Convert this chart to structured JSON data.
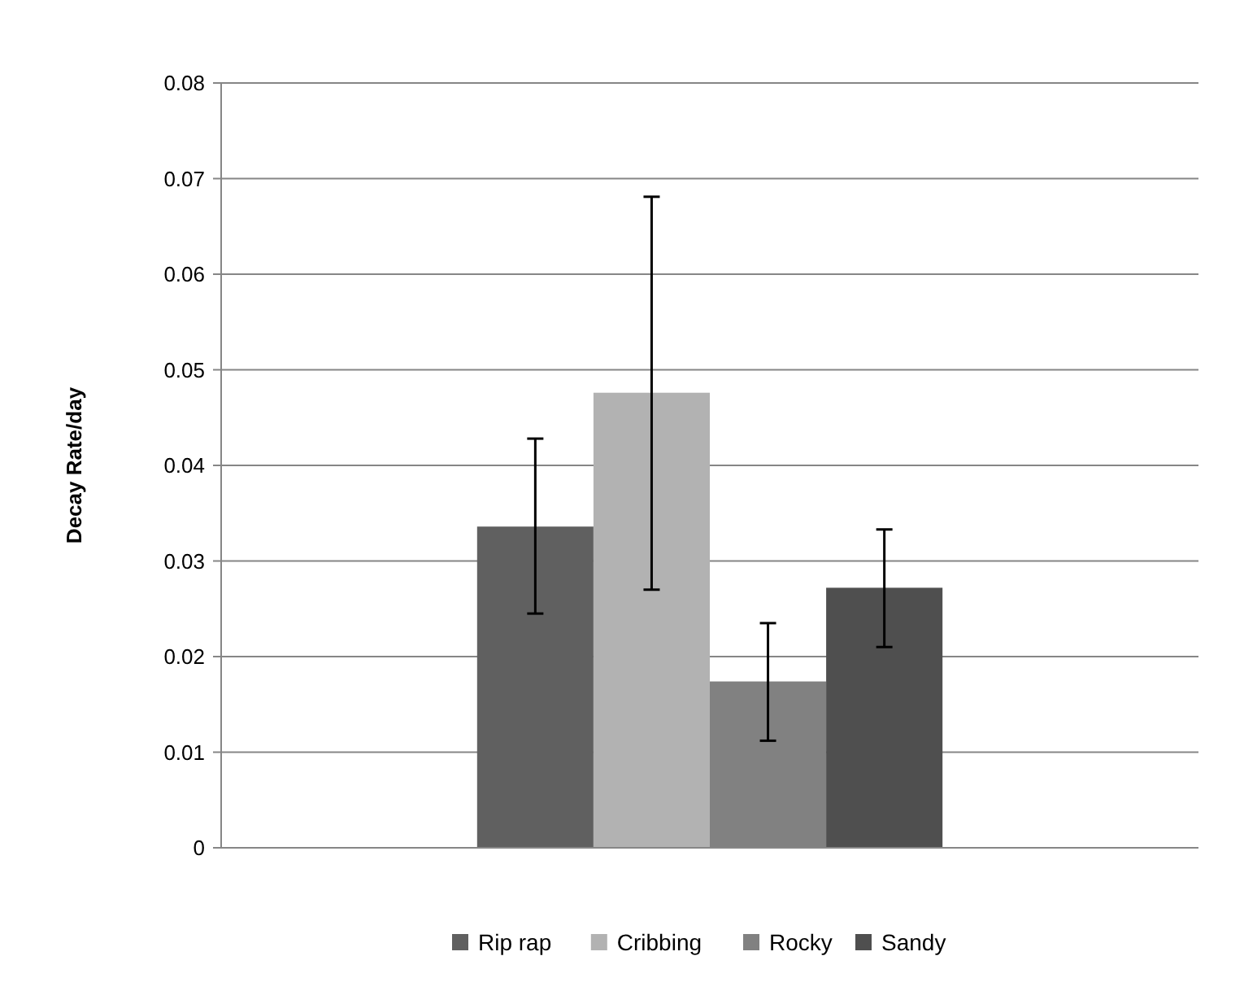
{
  "chart_data": {
    "type": "bar",
    "ylabel": "Decay Rate/day",
    "categories": [
      null
    ],
    "series": [
      {
        "name": "Rip rap",
        "color": "#606060",
        "values": [
          0.0336
        ],
        "errors": [
          [
            0.0245,
            0.0428
          ]
        ]
      },
      {
        "name": "Cribbing",
        "color": "#b2b2b2",
        "values": [
          0.0476
        ],
        "errors": [
          [
            0.027,
            0.0681
          ]
        ]
      },
      {
        "name": "Rocky",
        "color": "#818181",
        "values": [
          0.0174
        ],
        "errors": [
          [
            0.0112,
            0.0235
          ]
        ]
      },
      {
        "name": "Sandy",
        "color": "#4f4f4f",
        "values": [
          0.0272
        ],
        "errors": [
          [
            0.021,
            0.0333
          ]
        ]
      }
    ],
    "ylim": [
      0,
      0.08
    ],
    "yticks": [
      0,
      0.01,
      0.02,
      0.03,
      0.04,
      0.05,
      0.06,
      0.07,
      0.08
    ],
    "grid": "y",
    "legend": "bottom"
  }
}
